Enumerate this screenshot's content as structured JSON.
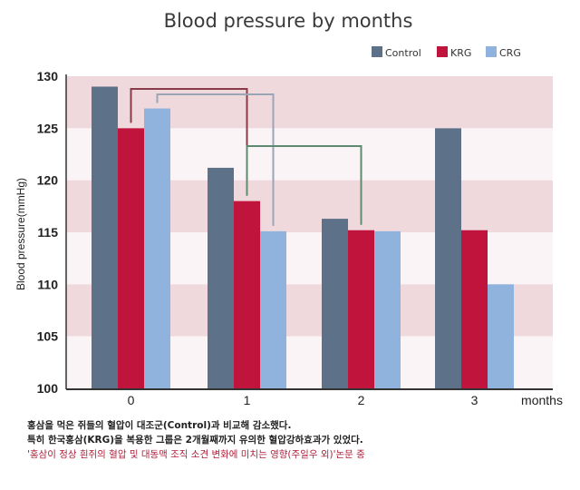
{
  "chart_data": {
    "type": "bar",
    "title": "Blood pressure by months",
    "xlabel": "months",
    "ylabel": "Blood pressure(mmHg)",
    "ylim": [
      100,
      130
    ],
    "yticks": [
      "100",
      "105",
      "110",
      "115",
      "120",
      "125",
      "130"
    ],
    "categories": [
      "0",
      "1",
      "2",
      "3"
    ],
    "grid": "alternating horizontal bands",
    "legend_position": "top-right",
    "series": [
      {
        "name": "Control",
        "color": "#5d7189",
        "values": [
          129,
          121.2,
          116.3,
          125
        ]
      },
      {
        "name": "KRG",
        "color": "#c0143c",
        "values": [
          125,
          118,
          115.2,
          115.2
        ]
      },
      {
        "name": "CRG",
        "color": "#8fb3dc",
        "values": [
          126.9,
          115.1,
          115.1,
          110
        ]
      }
    ],
    "annotations": [
      {
        "type": "bracket",
        "from": "KRG month 0",
        "to": "KRG month 1",
        "color": "#8b3a4a"
      },
      {
        "type": "bracket",
        "from": "CRG month 0",
        "to": "CRG month 1",
        "color": "#9aa5b5"
      },
      {
        "type": "bracket",
        "from": "KRG month 1",
        "to": "KRG month 2",
        "color": "#5f8a72"
      }
    ],
    "band_color": "#efd9dd",
    "band_light_color": "#fbf4f6"
  },
  "notes": {
    "line1": "홍삼을 먹은 쥐들의 혈압이 대조군(Control)과 비교해 감소했다.",
    "line2": "특히 한국홍삼(KRG)을 복용한 그룹은 2개월째까지 유의한 혈압강하효과가 있었다.",
    "source": "'홍삼이 정상 흰쥐의 혈압 및 대동맥 조직 소견 변화에 미치는 영향(주일우 외)'논문 중"
  }
}
